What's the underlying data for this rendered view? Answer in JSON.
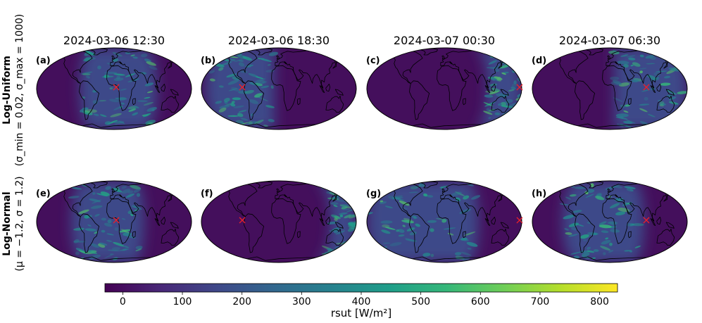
{
  "figure": {
    "column_titles": [
      "2024-03-06 12:30",
      "2024-03-06 18:30",
      "2024-03-07 00:30",
      "2024-03-07 06:30"
    ],
    "rows": [
      {
        "label_bold": "Log-Uniform",
        "label_params": "(σ_min = 0.02, σ_max = 1000)",
        "panel_labels": [
          "(a)",
          "(b)",
          "(c)",
          "(d)"
        ]
      },
      {
        "label_bold": "Log-Normal",
        "label_params": "(μ = −1.2, σ = 1.2)",
        "panel_labels": [
          "(e)",
          "(f)",
          "(g)",
          "(h)"
        ]
      }
    ],
    "marker_symbol": "×"
  },
  "chart_data": {
    "type": "heatmap",
    "projection": "Robinson (global maps)",
    "variable": "rsut",
    "colorbar": {
      "label": "rsut [W/m²]",
      "range": [
        -30,
        830
      ],
      "ticks": [
        0,
        100,
        200,
        300,
        400,
        500,
        600,
        700,
        800
      ],
      "tick_labels": [
        "0",
        "100",
        "200",
        "300",
        "400",
        "500",
        "600",
        "700",
        "800"
      ],
      "colormap": "viridis",
      "colormap_stops": [
        "#440154",
        "#482878",
        "#3e4989",
        "#31688e",
        "#26828e",
        "#1f9e89",
        "#35b779",
        "#6ece58",
        "#b5de2b",
        "#fde725"
      ]
    },
    "panels": [
      {
        "id": "a",
        "time": "2024-03-06 12:30",
        "prior": "Log-Uniform",
        "day_lon_range": [
          -80,
          100
        ],
        "marker_lon_lat": [
          5,
          2
        ]
      },
      {
        "id": "b",
        "time": "2024-03-06 18:30",
        "prior": "Log-Uniform",
        "day_lon_range": [
          -170,
          -10
        ],
        "marker_lon_lat": [
          -85,
          2
        ]
      },
      {
        "id": "c",
        "time": "2024-03-07 00:30",
        "prior": "Log-Uniform",
        "day_lon_range": [
          100,
          180
        ],
        "marker_lon_lat": [
          175,
          2
        ]
      },
      {
        "id": "d",
        "time": "2024-03-07 06:30",
        "prior": "Log-Uniform",
        "day_lon_range": [
          10,
          180
        ],
        "marker_lon_lat": [
          85,
          2
        ]
      },
      {
        "id": "e",
        "time": "2024-03-06 12:30",
        "prior": "Log-Normal",
        "day_lon_range": [
          -100,
          70
        ],
        "marker_lon_lat": [
          5,
          2
        ]
      },
      {
        "id": "f",
        "time": "2024-03-06 18:30",
        "prior": "Log-Normal",
        "day_lon_range": [
          120,
          180
        ],
        "marker_lon_lat": [
          -85,
          2
        ]
      },
      {
        "id": "g",
        "time": "2024-03-07 00:30",
        "prior": "Log-Normal",
        "day_lon_range": [
          -180,
          80
        ],
        "marker_lon_lat": [
          175,
          2
        ]
      },
      {
        "id": "h",
        "time": "2024-03-07 06:30",
        "prior": "Log-Normal",
        "day_lon_range": [
          -110,
          80
        ],
        "marker_lon_lat": [
          85,
          2
        ]
      }
    ]
  },
  "colors": {
    "night": "#440f5c",
    "day_base": "#3e4a89",
    "coast": "#000000",
    "marker": "#e8202a"
  }
}
